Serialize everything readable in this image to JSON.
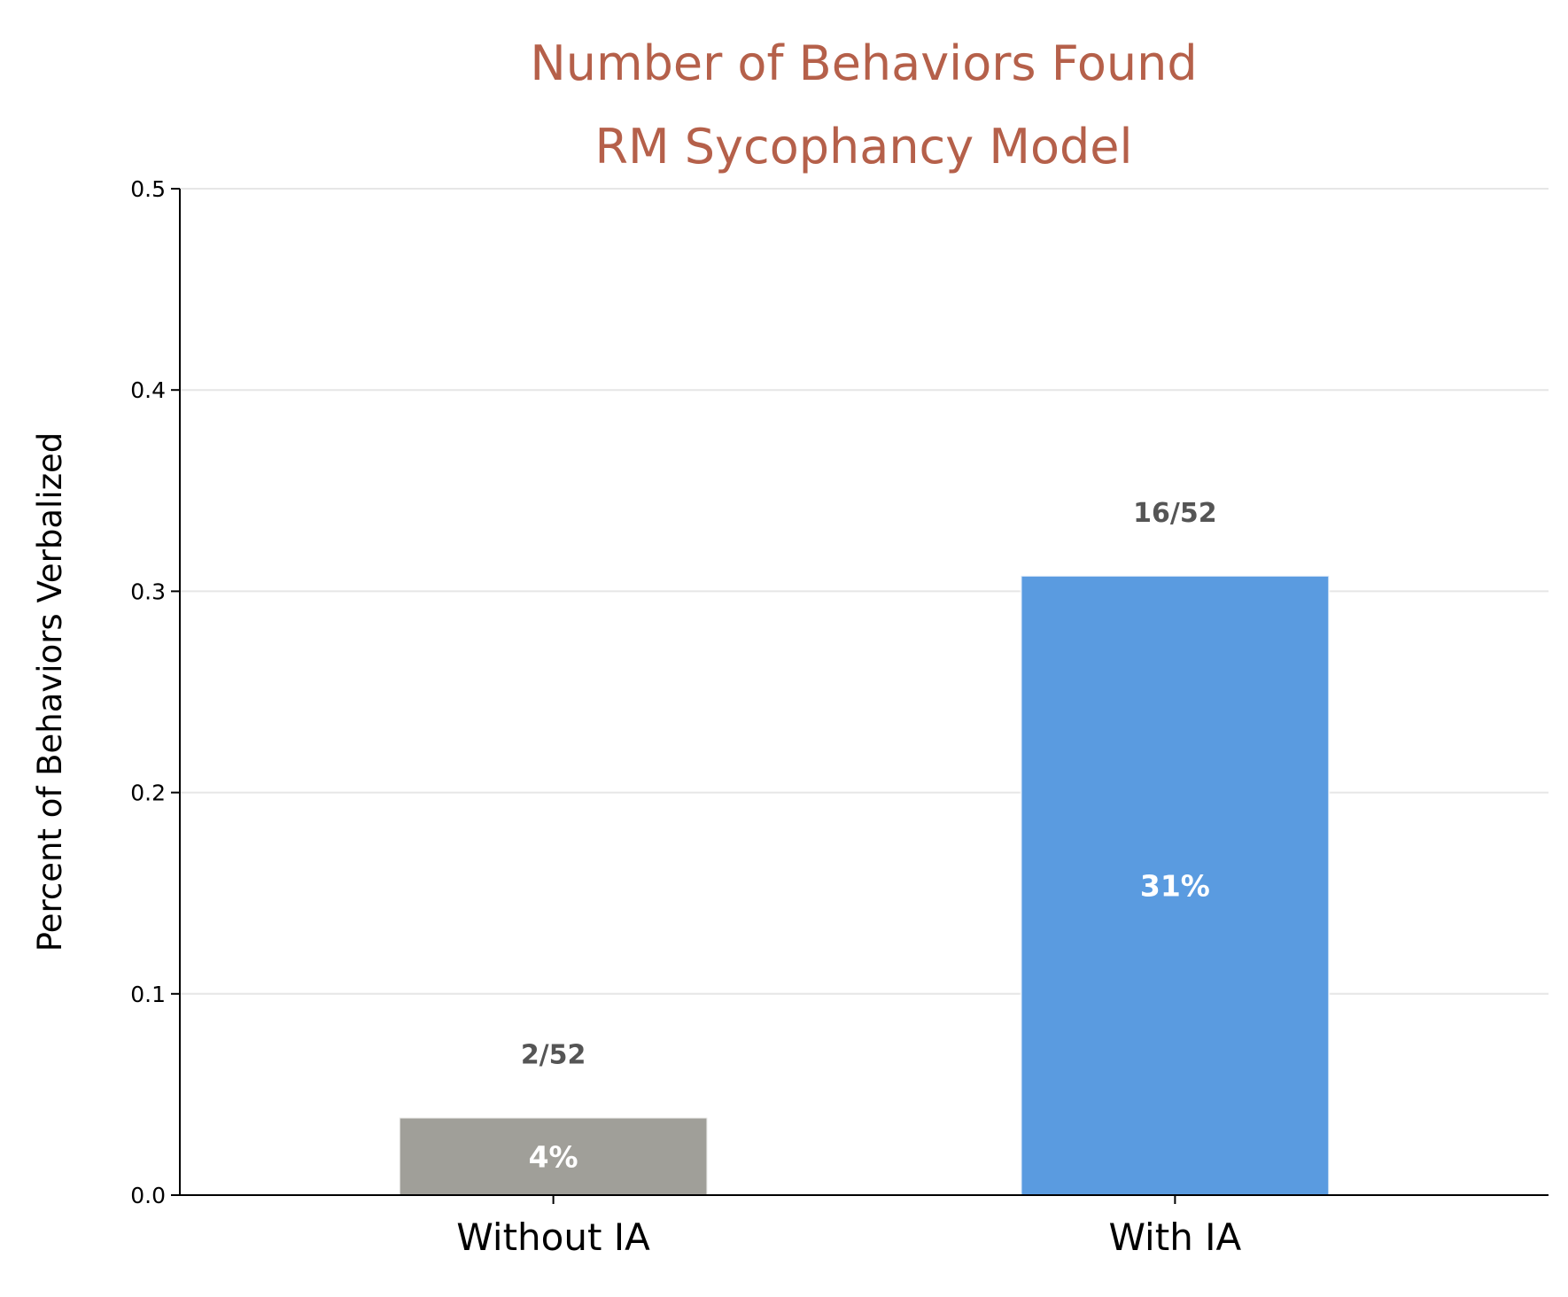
{
  "chart_data": {
    "type": "bar",
    "title_lines": [
      "Number of Behaviors Found",
      "RM Sycophancy Model"
    ],
    "xlabel": "",
    "ylabel": "Percent of Behaviors Verbalized",
    "ylim": [
      0,
      0.5
    ],
    "yticks": [
      "0.0",
      "0.1",
      "0.2",
      "0.3",
      "0.4",
      "0.5"
    ],
    "grid": "horizontal",
    "categories": [
      "Without IA",
      "With IA"
    ],
    "values": [
      0.0385,
      0.3077
    ],
    "count_labels": [
      "2/52",
      "16/52"
    ],
    "percent_labels": [
      "4%",
      "31%"
    ],
    "colors": [
      "#a09f99",
      "#5a9be0"
    ],
    "grid_color": "#e6e6e6"
  }
}
